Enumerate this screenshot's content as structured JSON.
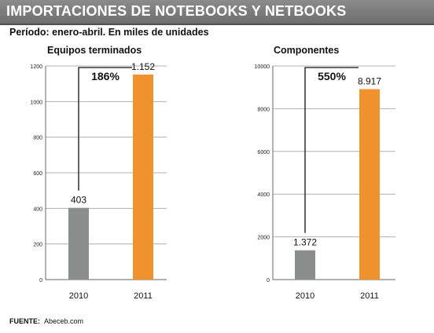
{
  "header": {
    "title": "IMPORTACIONES DE NOTEBOOKS Y NETBOOKS",
    "subtitle": "Período: enero-abril. En miles de unidades"
  },
  "source": {
    "label": "FUENTE:",
    "value": "Abeceb.com"
  },
  "colors": {
    "bar_2010": "#8a8f8d",
    "bar_2011": "#f0922e",
    "grid": "#b0b0b0",
    "axis": "#666666"
  },
  "chart_data": [
    {
      "type": "bar",
      "title": "Equipos terminados",
      "categories": [
        "2010",
        "2011"
      ],
      "values": [
        403,
        1152
      ],
      "value_labels": [
        "403",
        "1.152"
      ],
      "ylim": [
        0,
        1200
      ],
      "yticks": [
        0,
        200,
        400,
        600,
        800,
        1000,
        1200
      ],
      "grid": true,
      "growth_label": "186%"
    },
    {
      "type": "bar",
      "title": "Componentes",
      "categories": [
        "2010",
        "2011"
      ],
      "values": [
        1372,
        8917
      ],
      "value_labels": [
        "1.372",
        "8.917"
      ],
      "ylim": [
        0,
        10000
      ],
      "yticks": [
        0,
        2000,
        4000,
        6000,
        8000,
        10000
      ],
      "grid": true,
      "growth_label": "550%"
    }
  ]
}
